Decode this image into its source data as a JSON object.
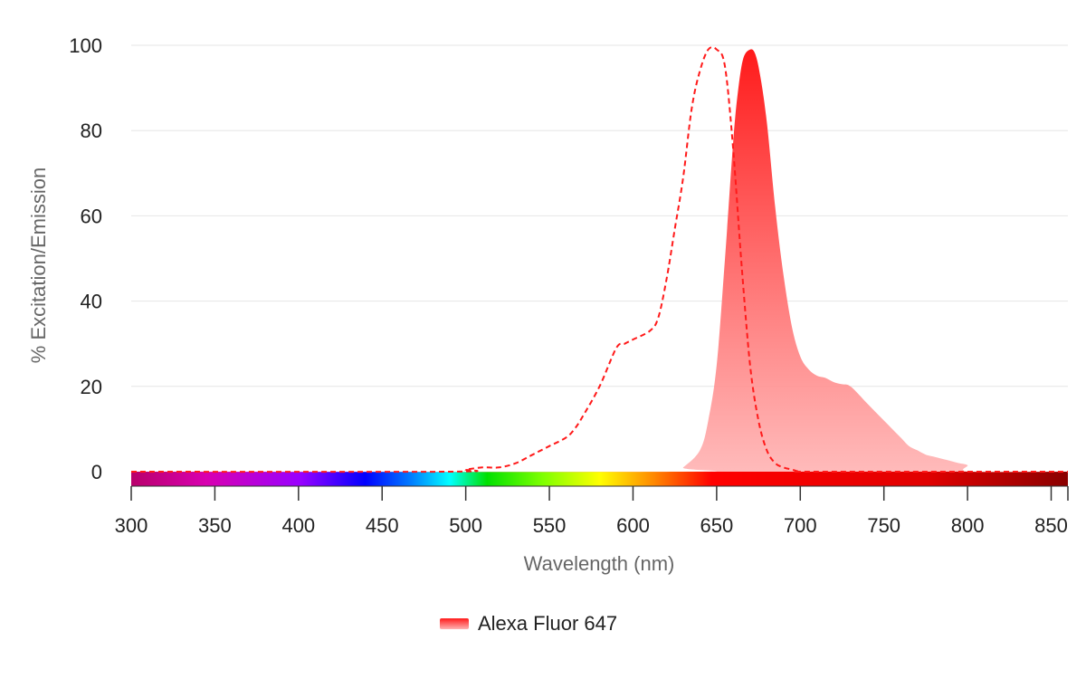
{
  "chart_data": {
    "type": "area",
    "title": "",
    "xlabel": "Wavelength (nm)",
    "ylabel": "% Excitation/Emission",
    "xlim": [
      300,
      860
    ],
    "ylim": [
      0,
      100
    ],
    "x_ticks": [
      300,
      350,
      400,
      450,
      500,
      550,
      600,
      650,
      700,
      750,
      800,
      850
    ],
    "y_ticks": [
      0,
      20,
      40,
      60,
      80,
      100
    ],
    "grid": true,
    "legend_position": "bottom-center",
    "legend": [
      "Alexa Fluor 647"
    ],
    "colors": {
      "series": "#ff1a1a",
      "series_light": "#ffb3b3"
    },
    "wavelength_bar": true,
    "series": [
      {
        "name": "Alexa Fluor 647",
        "kind": "excitation",
        "style": "dashed-line",
        "x": [
          300,
          490,
          500,
          510,
          520,
          530,
          540,
          550,
          560,
          565,
          570,
          580,
          590,
          595,
          600,
          610,
          615,
          620,
          625,
          630,
          635,
          640,
          645,
          650,
          655,
          660,
          665,
          670,
          675,
          680,
          685,
          690,
          695,
          700,
          710,
          860
        ],
        "y": [
          0,
          0,
          0.5,
          1,
          1,
          2,
          4,
          6,
          8,
          10,
          13,
          20,
          29,
          30,
          31,
          33,
          36,
          45,
          57,
          69,
          85,
          94,
          99,
          99,
          95,
          75,
          48,
          25,
          12,
          5,
          2,
          1,
          0.5,
          0,
          0,
          0
        ]
      },
      {
        "name": "Alexa Fluor 647",
        "kind": "emission",
        "style": "filled-area",
        "x": [
          300,
          625,
          630,
          640,
          645,
          650,
          655,
          660,
          663,
          666,
          670,
          673,
          676,
          680,
          685,
          690,
          695,
          700,
          705,
          710,
          715,
          720,
          725,
          730,
          740,
          750,
          760,
          765,
          770,
          775,
          780,
          790,
          795,
          800,
          802,
          860
        ],
        "y": [
          0,
          0,
          1,
          5,
          12,
          25,
          50,
          78,
          90,
          97,
          99,
          98,
          93,
          82,
          62,
          46,
          34,
          27,
          24,
          22.5,
          22,
          21,
          20.5,
          20,
          16,
          12,
          8,
          6,
          5,
          4,
          3.5,
          2.5,
          2,
          1.5,
          0,
          0
        ]
      }
    ]
  }
}
